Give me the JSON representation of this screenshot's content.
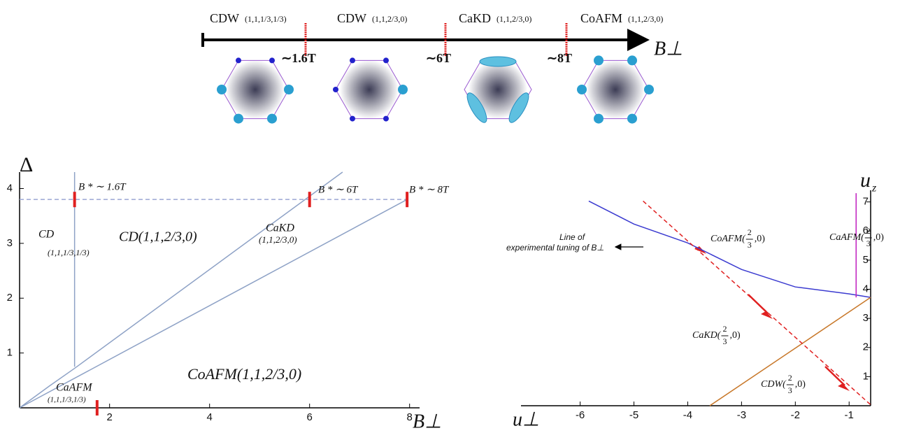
{
  "timeline": {
    "axis_label": "B⊥",
    "phases": [
      {
        "name": "CDW",
        "tuple": "(1,1,1/3,1/3)"
      },
      {
        "name": "CDW",
        "tuple": "(1,1,2/3,0)"
      },
      {
        "name": "CaKD",
        "tuple": "(1,1,2/3,0)"
      },
      {
        "name": "CoAFM",
        "tuple": "(1,1,2/3,0)"
      }
    ],
    "transitions": [
      "∼1.6T",
      "∼6T",
      "∼8T"
    ]
  },
  "chart_data": [
    {
      "type": "line",
      "xlabel": "B⊥",
      "ylabel": "Δ",
      "xlim": [
        0.2,
        8.2
      ],
      "ylim": [
        0,
        4.3
      ],
      "xticks": [
        2,
        4,
        6,
        8
      ],
      "yticks": [
        1,
        2,
        3,
        4
      ],
      "series": [
        {
          "color": "#9ba6d4",
          "dashed": true,
          "x": [
            0.2,
            7.95
          ],
          "values": [
            3.8,
            3.8
          ]
        },
        {
          "color": "#8ea2c6",
          "x": [
            1.3,
            1.3
          ],
          "values": [
            0.75,
            4.3
          ]
        },
        {
          "color": "#8ea2c6",
          "x": [
            0.2,
            0.8,
            1.3,
            6.66
          ],
          "values": [
            0,
            0.4,
            0.72,
            4.3
          ]
        },
        {
          "color": "#8ea2c6",
          "x": [
            0.2,
            7.95
          ],
          "values": [
            0,
            3.8
          ]
        }
      ],
      "markers": {
        "color": "#e02020",
        "x": [
          1.3,
          6,
          7.95,
          1.75
        ],
        "values": [
          3.8,
          3.8,
          3.8,
          0
        ]
      },
      "annotations": [
        "B * ∼ 1.6T",
        "B * ∼ 6T",
        "B * ∼ 8T",
        "CD",
        "(1,1,1/3,1/3)",
        "CD(1,1,2/3,0)",
        "CaKD",
        "(1,1,2/3,0)",
        "CoAFM(1,1,2/3,0)",
        "CaAFM",
        "(1,1,1/3,1/3)"
      ]
    },
    {
      "type": "line",
      "xlabel": "u⊥",
      "ylabel": {
        "base": "u",
        "sub": "z"
      },
      "xlim": [
        -7.1,
        -0.6
      ],
      "ylim": [
        0,
        7.4
      ],
      "xticks": [
        -6,
        -5,
        -4,
        -3,
        -2,
        -1
      ],
      "yticks": [
        1,
        2,
        3,
        4,
        5,
        6,
        7
      ],
      "series": [
        {
          "color": "#3b3bd0",
          "x": [
            -5.84,
            -5,
            -4,
            -3,
            -2,
            -1,
            -0.6
          ],
          "values": [
            7.03,
            6.24,
            5.59,
            4.68,
            4.08,
            3.84,
            3.72
          ]
        },
        {
          "color": "#c8782a",
          "x": [
            -3.59,
            -0.6
          ],
          "values": [
            0,
            3.72
          ]
        },
        {
          "color": "#e02020",
          "dashed": true,
          "x": [
            -4.83,
            -0.58
          ],
          "values": [
            7.03,
            0
          ]
        },
        {
          "color": "#c020c0",
          "x": [
            -0.87,
            -0.87
          ],
          "values": [
            3.72,
            7.3
          ]
        }
      ],
      "callout": [
        "Line of",
        "experimental tuning of B⊥"
      ],
      "phases": [
        {
          "pre": "CoAFM(",
          "num": "2",
          "den": "3",
          "tail": ",0)"
        },
        {
          "pre": "CaAFM(",
          "num": "2",
          "den": "3",
          "tail": ",0)"
        },
        {
          "pre": "CaKD(",
          "num": "2",
          "den": "3",
          "tail": ",0)"
        },
        {
          "pre": "CDW(",
          "num": "2",
          "den": "3",
          "tail": ",0)"
        }
      ]
    }
  ]
}
